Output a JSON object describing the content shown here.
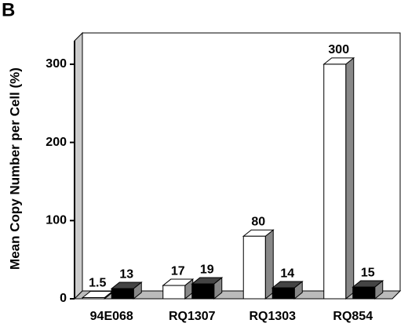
{
  "chart_data": {
    "type": "bar3d",
    "panel_label": "B",
    "y_label": "Mean Copy Number per Cell (%)",
    "categories": [
      "94E068",
      "RQ1307",
      "RQ1303",
      "RQ854"
    ],
    "series": [
      {
        "color": "#ffffff",
        "values": [
          1.5,
          17,
          80,
          300
        ]
      },
      {
        "color": "#000000",
        "values": [
          13,
          19,
          14,
          15
        ]
      }
    ],
    "ylim": [
      0,
      330
    ],
    "yticks": [
      0,
      100,
      200,
      300
    ]
  }
}
